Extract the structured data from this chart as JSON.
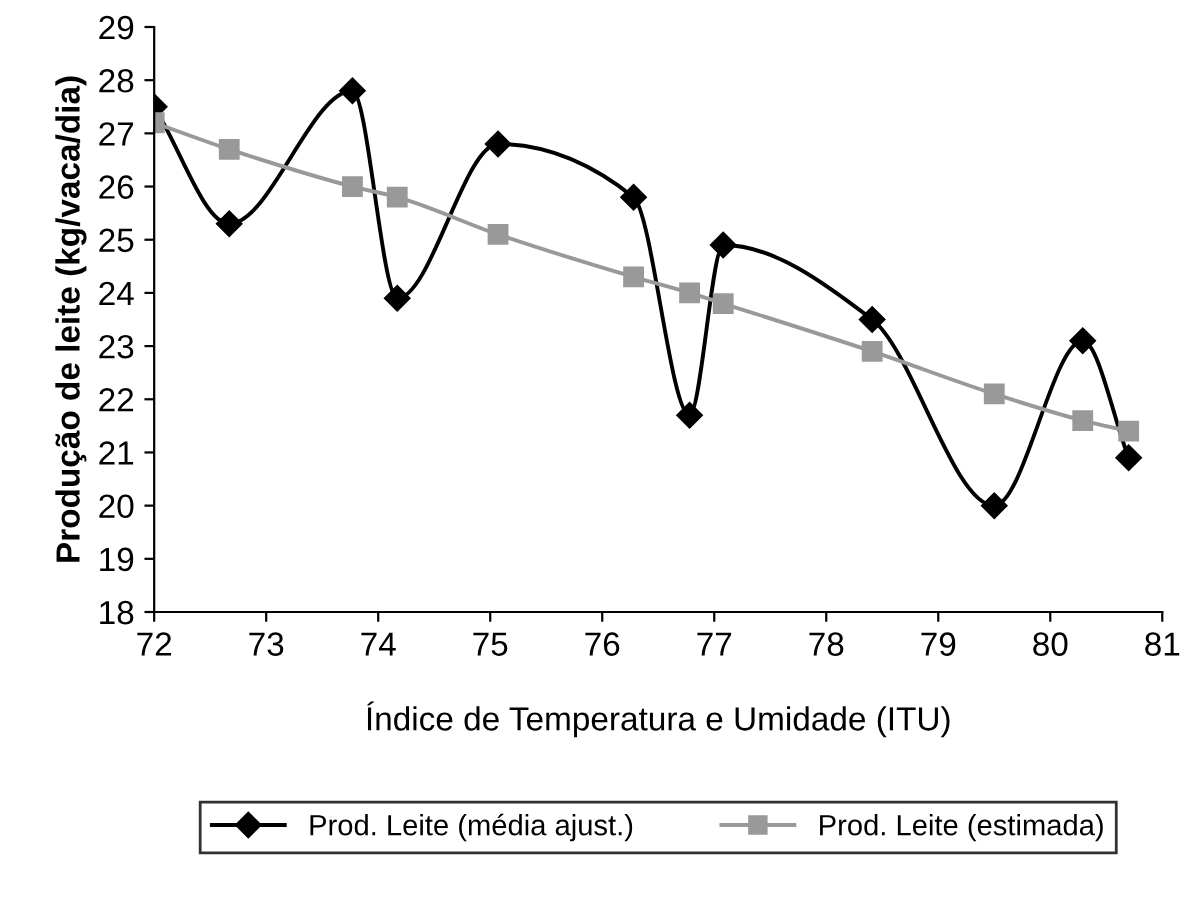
{
  "chart_data": {
    "type": "line",
    "xlabel": "Índice de Temperatura e Umidade (ITU)",
    "ylabel": "Produção de leite (kg/vaca/dia)",
    "x": [
      72.0,
      72.67,
      73.77,
      74.17,
      75.07,
      76.28,
      76.78,
      77.08,
      78.41,
      79.5,
      80.29,
      80.7
    ],
    "series": [
      {
        "name": "Prod. Leite (média ajust.)",
        "color": "#000000",
        "marker": "diamond",
        "line_style": "solid",
        "values": [
          27.5,
          25.3,
          27.8,
          23.9,
          26.8,
          25.8,
          21.7,
          24.9,
          23.5,
          20.0,
          23.1,
          20.9
        ]
      },
      {
        "name": "Prod. Leite (estimada)",
        "color": "#999999",
        "marker": "square",
        "line_style": "solid",
        "values": [
          27.2,
          26.7,
          26.0,
          25.8,
          25.1,
          24.3,
          24.0,
          23.8,
          22.9,
          22.1,
          21.6,
          21.4
        ]
      }
    ],
    "xlim": [
      72,
      81
    ],
    "xticks": [
      72,
      73,
      74,
      75,
      76,
      77,
      78,
      79,
      80,
      81
    ],
    "ylim": [
      18,
      29
    ],
    "yticks": [
      18,
      19,
      20,
      21,
      22,
      23,
      24,
      25,
      26,
      27,
      28,
      29
    ],
    "grid": false,
    "legend": "bottom"
  }
}
